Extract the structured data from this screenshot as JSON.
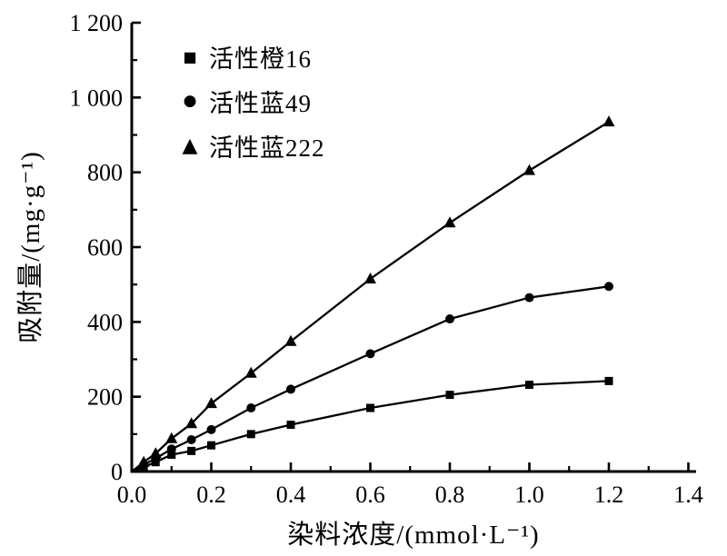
{
  "figure": {
    "background": "#ffffff",
    "axis_color": "#000000"
  },
  "chart_data": {
    "type": "line",
    "title": "",
    "xlabel": "染料浓度/(mmol·L⁻¹)",
    "ylabel": "吸附量/(mg·g⁻¹)",
    "xlim": [
      0,
      1.4
    ],
    "ylim": [
      0,
      1200
    ],
    "grid": false,
    "legend_position": "upper-left-inside",
    "line_through_origin": true,
    "x": [
      0.03,
      0.06,
      0.1,
      0.15,
      0.2,
      0.3,
      0.4,
      0.6,
      0.8,
      1.0,
      1.2
    ],
    "series": [
      {
        "name": "活性橙16",
        "marker": "square",
        "marker_glyph": "■",
        "color": "#000000",
        "values": [
          12,
          25,
          45,
          55,
          70,
          100,
          125,
          170,
          205,
          232,
          242
        ]
      },
      {
        "name": "活性蓝49",
        "marker": "circle",
        "marker_glyph": "●",
        "color": "#000000",
        "values": [
          18,
          35,
          60,
          85,
          112,
          170,
          220,
          315,
          408,
          465,
          495
        ]
      },
      {
        "name": "活性蓝222",
        "marker": "triangle",
        "marker_glyph": "▲",
        "color": "#000000",
        "values": [
          25,
          48,
          88,
          128,
          182,
          263,
          348,
          515,
          665,
          805,
          935
        ]
      }
    ],
    "x_ticks": {
      "major": [
        {
          "v": 0.0,
          "label": "0.0"
        },
        {
          "v": 0.2,
          "label": "0.2"
        },
        {
          "v": 0.4,
          "label": "0.4"
        },
        {
          "v": 0.6,
          "label": "0.6"
        },
        {
          "v": 0.8,
          "label": "0.8"
        },
        {
          "v": 1.0,
          "label": "1.0"
        },
        {
          "v": 1.2,
          "label": "1.2"
        },
        {
          "v": 1.4,
          "label": "1.4"
        }
      ],
      "minor": [
        0.1,
        0.3,
        0.5,
        0.7,
        0.9,
        1.1,
        1.3
      ]
    },
    "y_ticks": {
      "major": [
        {
          "v": 0,
          "label": "0"
        },
        {
          "v": 200,
          "label": "200"
        },
        {
          "v": 400,
          "label": "400"
        },
        {
          "v": 600,
          "label": "600"
        },
        {
          "v": 800,
          "label": "800"
        },
        {
          "v": 1000,
          "label": "1 000"
        },
        {
          "v": 1200,
          "label": "1 200"
        }
      ],
      "minor": [
        100,
        300,
        500,
        700,
        900,
        1100
      ]
    }
  }
}
